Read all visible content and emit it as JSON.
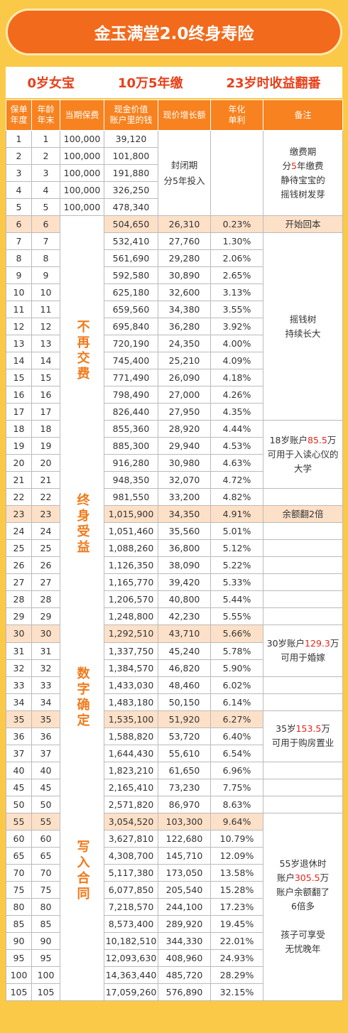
{
  "header": {
    "title": "金玉满堂2.0终身寿险"
  },
  "subtitle": [
    "0岁女宝",
    "10万5年缴",
    "23岁时收益翻番"
  ],
  "table": {
    "columns": [
      "保单\n年度",
      "年龄\n年末",
      "当期保费",
      "现金价值\n账户里的钱",
      "现价增长额",
      "年化\n单利",
      "备注"
    ],
    "rows": [
      [
        1,
        1,
        "100,000",
        "39,120",
        null,
        null
      ],
      [
        2,
        2,
        "100,000",
        "101,800",
        null,
        null
      ],
      [
        3,
        3,
        "100,000",
        "191,880",
        null,
        null
      ],
      [
        4,
        4,
        "100,000",
        "326,250",
        null,
        null
      ],
      [
        5,
        5,
        "100,000",
        "478,340",
        null,
        null
      ],
      [
        6,
        6,
        null,
        "504,650",
        "26,310",
        "0.23%"
      ],
      [
        7,
        7,
        null,
        "532,410",
        "27,760",
        "1.30%"
      ],
      [
        8,
        8,
        null,
        "561,690",
        "29,280",
        "2.06%"
      ],
      [
        9,
        9,
        null,
        "592,580",
        "30,890",
        "2.65%"
      ],
      [
        10,
        10,
        null,
        "625,180",
        "32,600",
        "3.13%"
      ],
      [
        11,
        11,
        null,
        "659,560",
        "34,380",
        "3.55%"
      ],
      [
        12,
        12,
        null,
        "695,840",
        "36,280",
        "3.92%"
      ],
      [
        13,
        13,
        null,
        "720,190",
        "24,350",
        "4.00%"
      ],
      [
        14,
        14,
        null,
        "745,400",
        "25,210",
        "4.09%"
      ],
      [
        15,
        15,
        null,
        "771,490",
        "26,090",
        "4.18%"
      ],
      [
        16,
        16,
        null,
        "798,490",
        "27,000",
        "4.26%"
      ],
      [
        17,
        17,
        null,
        "826,440",
        "27,950",
        "4.35%"
      ],
      [
        18,
        18,
        null,
        "855,360",
        "28,920",
        "4.44%"
      ],
      [
        19,
        19,
        null,
        "885,300",
        "29,940",
        "4.53%"
      ],
      [
        20,
        20,
        null,
        "916,280",
        "30,980",
        "4.63%"
      ],
      [
        21,
        21,
        null,
        "948,350",
        "32,070",
        "4.72%"
      ],
      [
        22,
        22,
        null,
        "981,550",
        "33,200",
        "4.82%"
      ],
      [
        23,
        23,
        null,
        "1,015,900",
        "34,350",
        "4.91%"
      ],
      [
        24,
        24,
        null,
        "1,051,460",
        "35,560",
        "5.01%"
      ],
      [
        25,
        25,
        null,
        "1,088,260",
        "36,800",
        "5.12%"
      ],
      [
        26,
        26,
        null,
        "1,126,350",
        "38,090",
        "5.22%"
      ],
      [
        27,
        27,
        null,
        "1,165,770",
        "39,420",
        "5.33%"
      ],
      [
        28,
        28,
        null,
        "1,206,570",
        "40,800",
        "5.44%"
      ],
      [
        29,
        29,
        null,
        "1,248,800",
        "42,230",
        "5.55%"
      ],
      [
        30,
        30,
        null,
        "1,292,510",
        "43,710",
        "5.66%"
      ],
      [
        31,
        31,
        null,
        "1,337,750",
        "45,240",
        "5.78%"
      ],
      [
        32,
        32,
        null,
        "1,384,570",
        "46,820",
        "5.90%"
      ],
      [
        33,
        33,
        null,
        "1,433,030",
        "48,460",
        "6.02%"
      ],
      [
        34,
        34,
        null,
        "1,483,180",
        "50,150",
        "6.14%"
      ],
      [
        35,
        35,
        null,
        "1,535,100",
        "51,920",
        "6.27%"
      ],
      [
        36,
        36,
        null,
        "1,588,820",
        "53,720",
        "6.40%"
      ],
      [
        37,
        37,
        null,
        "1,644,430",
        "55,610",
        "6.54%"
      ],
      [
        40,
        40,
        null,
        "1,823,210",
        "61,650",
        "6.96%"
      ],
      [
        45,
        45,
        null,
        "2,165,410",
        "73,230",
        "7.75%"
      ],
      [
        50,
        50,
        null,
        "2,571,820",
        "86,970",
        "8.63%"
      ],
      [
        55,
        55,
        null,
        "3,054,520",
        "103,300",
        "9.64%"
      ],
      [
        60,
        60,
        null,
        "3,627,810",
        "122,680",
        "10.79%"
      ],
      [
        65,
        65,
        null,
        "4,308,700",
        "145,710",
        "12.09%"
      ],
      [
        70,
        70,
        null,
        "5,117,380",
        "173,050",
        "13.58%"
      ],
      [
        75,
        75,
        null,
        "6,077,850",
        "205,540",
        "15.28%"
      ],
      [
        80,
        80,
        null,
        "7,218,570",
        "244,100",
        "17.23%"
      ],
      [
        85,
        85,
        null,
        "8,573,400",
        "289,920",
        "19.45%"
      ],
      [
        90,
        90,
        null,
        "10,182,510",
        "344,330",
        "22.01%"
      ],
      [
        95,
        95,
        null,
        "12,093,630",
        "408,960",
        "24.93%"
      ],
      [
        100,
        100,
        null,
        "14,363,440",
        "485,720",
        "28.29%"
      ],
      [
        105,
        105,
        null,
        "17,059,260",
        "576,890",
        "32.15%"
      ]
    ],
    "lock_period": "封闭期\n分5年投入",
    "premium_note": [
      "不再交费",
      "终身受益",
      "数字确定",
      "写入合同"
    ],
    "notes": [
      [
        "缴费期",
        [
          "分",
          "5",
          "年缴费"
        ],
        "静待宝宝的",
        "摇钱树发芽"
      ],
      [
        "开始回本"
      ],
      [
        "摇钱树",
        "持续长大"
      ],
      [
        [
          "18岁账户",
          "85.5",
          "万"
        ],
        "可用于入读心仪的",
        "大学"
      ],
      [
        "余额翻2倍"
      ],
      [
        [
          "30岁账户",
          "129.3",
          "万"
        ],
        "可用于婚嫁"
      ],
      [
        [
          "35岁",
          "153.5",
          "万"
        ],
        "可用于购房置业"
      ],
      [
        "55岁退休时",
        [
          "账户",
          "305.5",
          "万"
        ],
        "账户余额翻了",
        "6倍多",
        "孩子可享受",
        "无忧晚年"
      ]
    ]
  }
}
